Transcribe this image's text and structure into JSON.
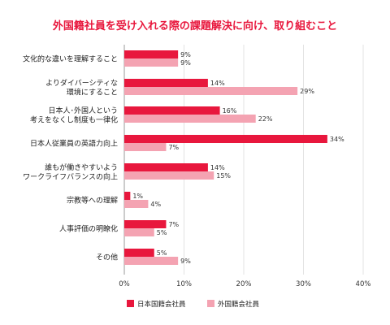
{
  "chart_data": {
    "type": "bar",
    "orientation": "horizontal",
    "title": "外国籍社員を受け入れる際の課題解決に向け、取り組むこと",
    "categories": [
      "文化的な違いを理解すること",
      "よりダイバーシティな\n環境にすること",
      "日本人･外国人という\n考えをなくし制度も一律化",
      "日本人従業員の英語力向上",
      "誰もが働きやすいよう\nワークライフバランスの向上",
      "宗教等への理解",
      "人事評価の明瞭化",
      "その他"
    ],
    "series": [
      {
        "name": "日本国籍会社員",
        "color": "#e8173d",
        "values": [
          9,
          14,
          16,
          34,
          14,
          1,
          7,
          5
        ]
      },
      {
        "name": "外国籍会社員",
        "color": "#f4a3b2",
        "values": [
          9,
          29,
          22,
          7,
          15,
          4,
          5,
          9
        ]
      }
    ],
    "xlim": [
      0,
      40
    ],
    "xticks": [
      0,
      10,
      20,
      30,
      40
    ],
    "value_suffix": "%",
    "grid": true,
    "legend": "bottom",
    "title_color": "#e8173d"
  }
}
